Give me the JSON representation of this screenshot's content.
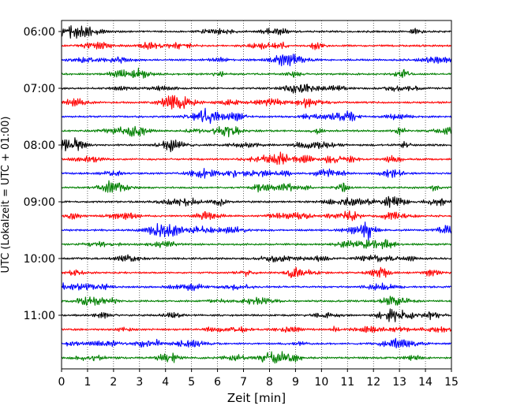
{
  "chart_data": {
    "type": "line",
    "subtype": "seismogram-helicorder",
    "title": "",
    "xlabel": "Zeit  [min]",
    "ylabel": "UTC (Lokalzeit = UTC + 01:00)",
    "xlim": [
      0,
      15
    ],
    "x_ticks": [
      "0",
      "1",
      "2",
      "3",
      "4",
      "5",
      "6",
      "7",
      "8",
      "9",
      "10",
      "11",
      "12",
      "13",
      "14",
      "15"
    ],
    "y_ticks": [
      "06:00",
      "07:00",
      "08:00",
      "09:00",
      "10:00",
      "11:00"
    ],
    "grid": {
      "vertical": true,
      "style": "dotted"
    },
    "line_colors": [
      "#000000",
      "#ff0000",
      "#0000ff",
      "#008000"
    ],
    "row_count": 24,
    "series": [
      {
        "row": 0,
        "color": "#000000"
      },
      {
        "row": 1,
        "color": "#ff0000"
      },
      {
        "row": 2,
        "color": "#0000ff"
      },
      {
        "row": 3,
        "color": "#008000"
      },
      {
        "row": 4,
        "color": "#000000"
      },
      {
        "row": 5,
        "color": "#ff0000"
      },
      {
        "row": 6,
        "color": "#0000ff"
      },
      {
        "row": 7,
        "color": "#008000"
      },
      {
        "row": 8,
        "color": "#000000"
      },
      {
        "row": 9,
        "color": "#ff0000"
      },
      {
        "row": 10,
        "color": "#0000ff"
      },
      {
        "row": 11,
        "color": "#008000"
      },
      {
        "row": 12,
        "color": "#000000"
      },
      {
        "row": 13,
        "color": "#ff0000"
      },
      {
        "row": 14,
        "color": "#0000ff"
      },
      {
        "row": 15,
        "color": "#008000"
      },
      {
        "row": 16,
        "color": "#000000"
      },
      {
        "row": 17,
        "color": "#ff0000"
      },
      {
        "row": 18,
        "color": "#0000ff"
      },
      {
        "row": 19,
        "color": "#008000"
      },
      {
        "row": 20,
        "color": "#000000"
      },
      {
        "row": 21,
        "color": "#ff0000"
      },
      {
        "row": 22,
        "color": "#0000ff"
      },
      {
        "row": 23,
        "color": "#008000"
      }
    ]
  }
}
